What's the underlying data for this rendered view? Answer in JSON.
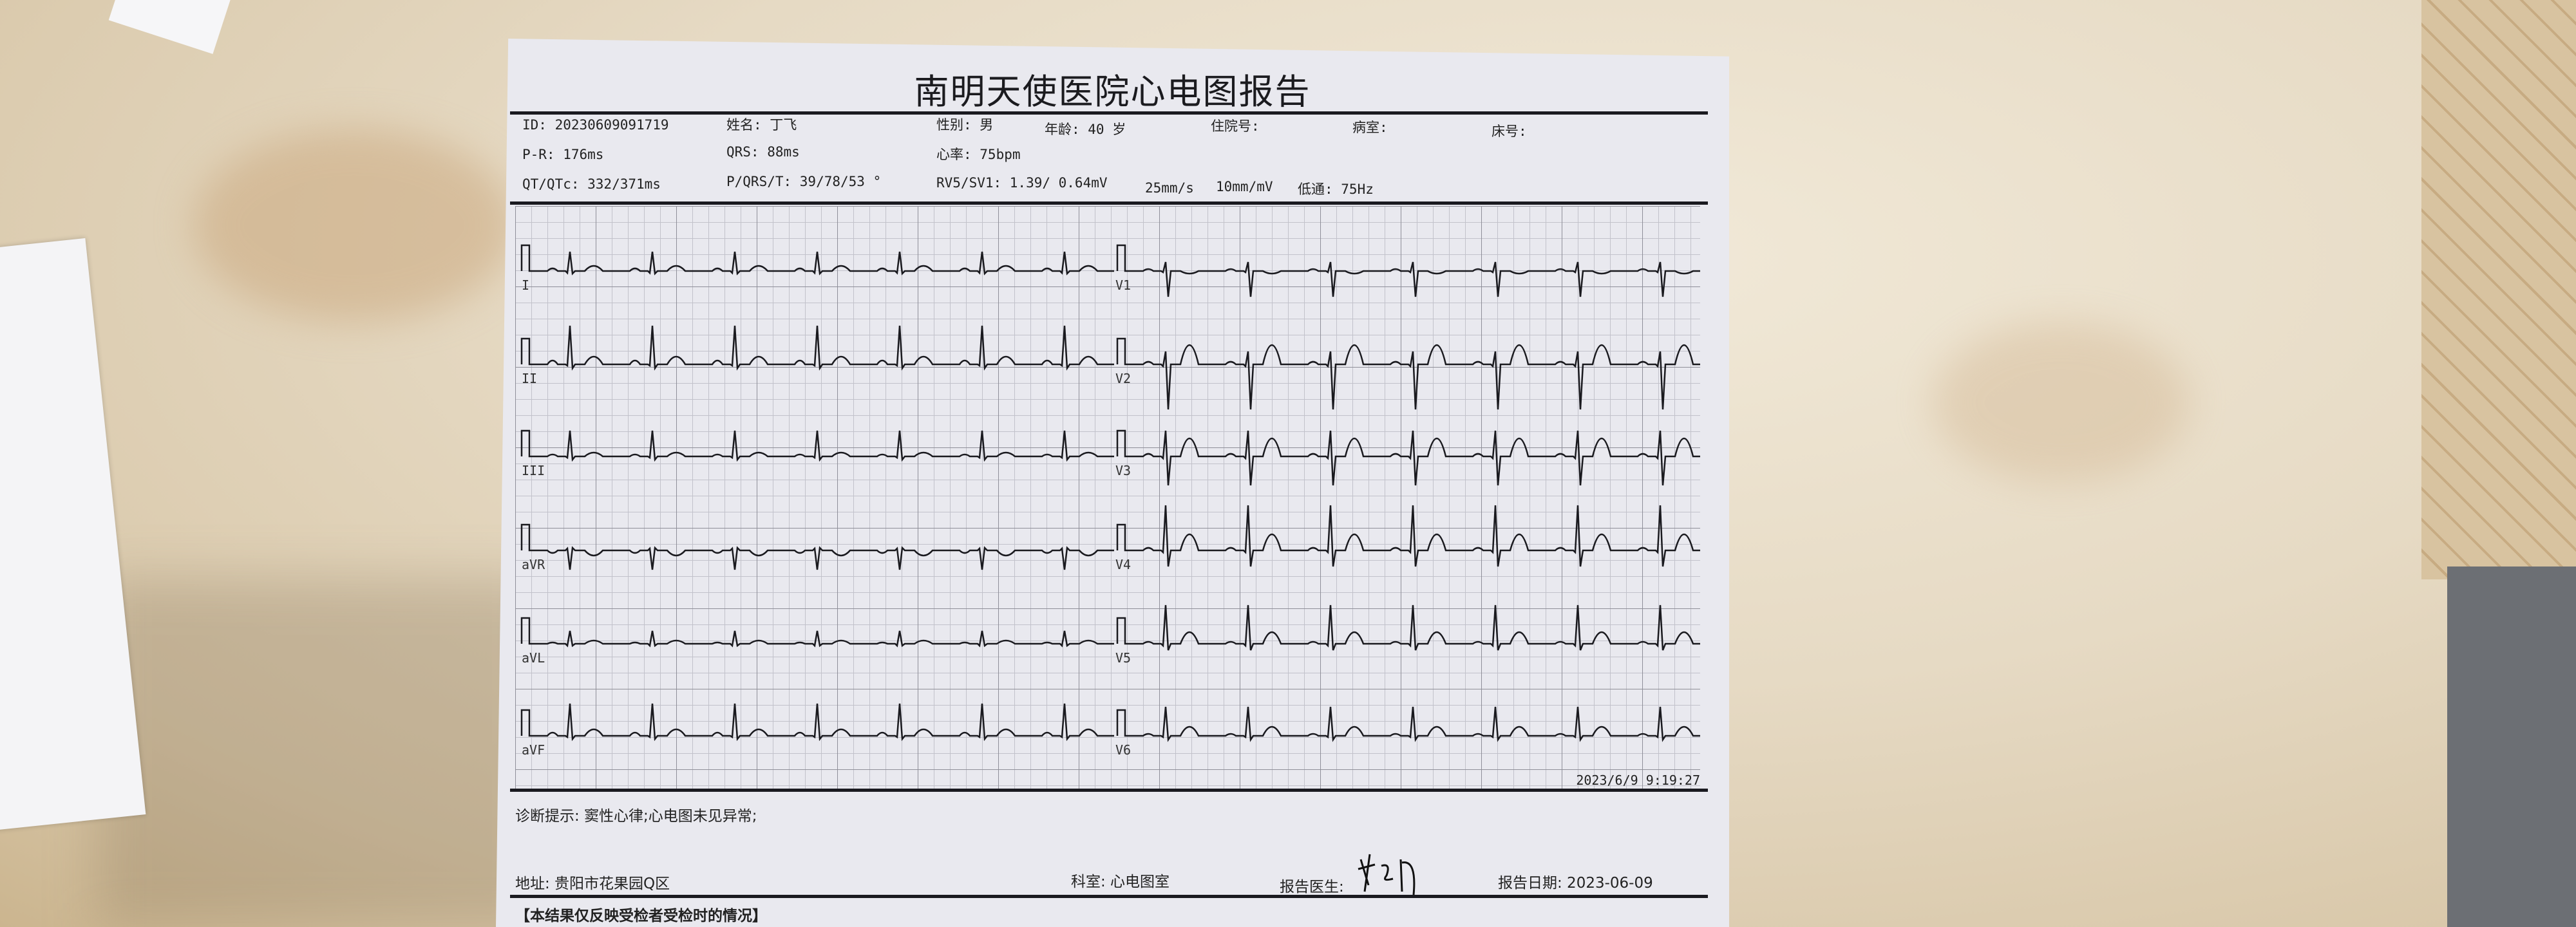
{
  "report": {
    "title": "南明天使医院心电图报告",
    "patient": {
      "id": "ID: 20230609091719",
      "name": "姓名: 丁飞",
      "sex": "性别: 男",
      "age": "年龄: 40 岁",
      "admission_no": "住院号:",
      "ward": "病室:",
      "bed": "床号:"
    },
    "measurements": {
      "pr": "P-R: 176ms",
      "qrs": "QRS: 88ms",
      "heart_rate": "心率: 75bpm",
      "qt_qtc": "QT/QTc: 332/371ms",
      "axis": "P/QRS/T: 39/78/53 °",
      "rv5_sv1": "RV5/SV1:  1.39/ 0.64mV",
      "speed": "25mm/s",
      "gain": "10mm/mV",
      "filter": "低通: 75Hz"
    },
    "leads_left": [
      "I",
      "II",
      "III",
      "aVR",
      "aVL",
      "aVF"
    ],
    "leads_right": [
      "V1",
      "V2",
      "V3",
      "V4",
      "V5",
      "V6"
    ],
    "timestamp": "2023/6/9 9:19:27",
    "diagnosis": "诊断提示: 窦性心律;心电图未见异常;",
    "footer": {
      "address": "地址: 贵阳市花果园Q区",
      "department": "科室: 心电图室",
      "doctor_label": "报告医生:",
      "report_date": "报告日期: 2023-06-09"
    },
    "disclaimer": "【本结果仅反映受检者受检时的情况】"
  },
  "colors": {
    "paper": "#e9e9ef",
    "ink": "#1a1a20",
    "grid": "#8f8f99"
  }
}
